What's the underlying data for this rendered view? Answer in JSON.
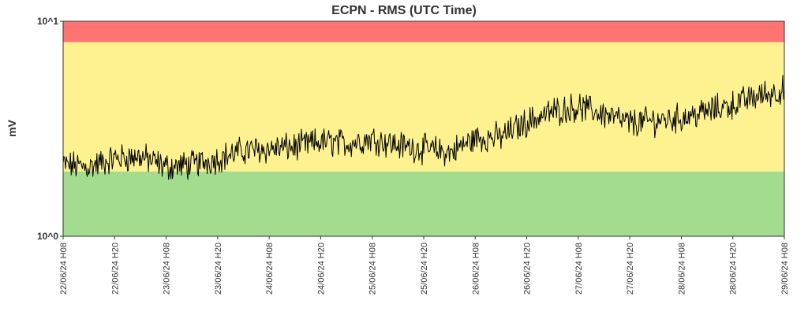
{
  "chart_data": {
    "type": "line",
    "title": "ECPN - RMS (UTC Time)",
    "ylabel": "mV",
    "xlabel": "",
    "y_scale": "log",
    "ylim": [
      1,
      10
    ],
    "yticks": [
      {
        "value": 1,
        "label": "10^0"
      },
      {
        "value": 10,
        "label": "10^1"
      }
    ],
    "x_range": [
      "22/06/24 H08",
      "29/06/24 H08"
    ],
    "xticks": [
      "22/06/24 H08",
      "22/06/24 H20",
      "23/06/24 H08",
      "23/06/24 H20",
      "24/06/24 H08",
      "24/06/24 H20",
      "25/06/24 H08",
      "25/06/24 H20",
      "26/06/24 H08",
      "26/06/24 H20",
      "27/06/24 H08",
      "27/06/24 H20",
      "28/06/24 H08",
      "28/06/24 H20",
      "29/06/24 H08"
    ],
    "bands": [
      {
        "name": "red",
        "from": 8.0,
        "to": 10,
        "color": "#ff7373"
      },
      {
        "name": "yellow",
        "from": 2.0,
        "to": 8.0,
        "color": "#fdf28f"
      },
      {
        "name": "green",
        "from": 1,
        "to": 2.0,
        "color": "#a3dc8f"
      }
    ],
    "grid": false,
    "legend": "none",
    "series": [
      {
        "color": "#000000",
        "x": [
          "22/06/24 H08",
          "22/06/24 H14",
          "22/06/24 H20",
          "23/06/24 H02",
          "23/06/24 H08",
          "23/06/24 H14",
          "23/06/24 H20",
          "24/06/24 H02",
          "24/06/24 H08",
          "24/06/24 H14",
          "24/06/24 H20",
          "25/06/24 H02",
          "25/06/24 H08",
          "25/06/24 H14",
          "25/06/24 H20",
          "26/06/24 H02",
          "26/06/24 H08",
          "26/06/24 H14",
          "26/06/24 H20",
          "27/06/24 H02",
          "27/06/24 H08",
          "27/06/24 H14",
          "27/06/24 H20",
          "28/06/24 H02",
          "28/06/24 H08",
          "28/06/24 H14",
          "28/06/24 H20",
          "29/06/24 H02",
          "29/06/24 H08"
        ],
        "values": [
          2.15,
          2.1,
          2.3,
          2.35,
          2.1,
          2.15,
          2.3,
          2.5,
          2.55,
          2.6,
          2.75,
          2.7,
          2.85,
          2.65,
          2.55,
          2.45,
          2.85,
          2.9,
          3.4,
          3.8,
          4.0,
          3.7,
          3.35,
          3.45,
          3.55,
          3.8,
          4.1,
          4.5,
          4.8
        ]
      }
    ]
  }
}
